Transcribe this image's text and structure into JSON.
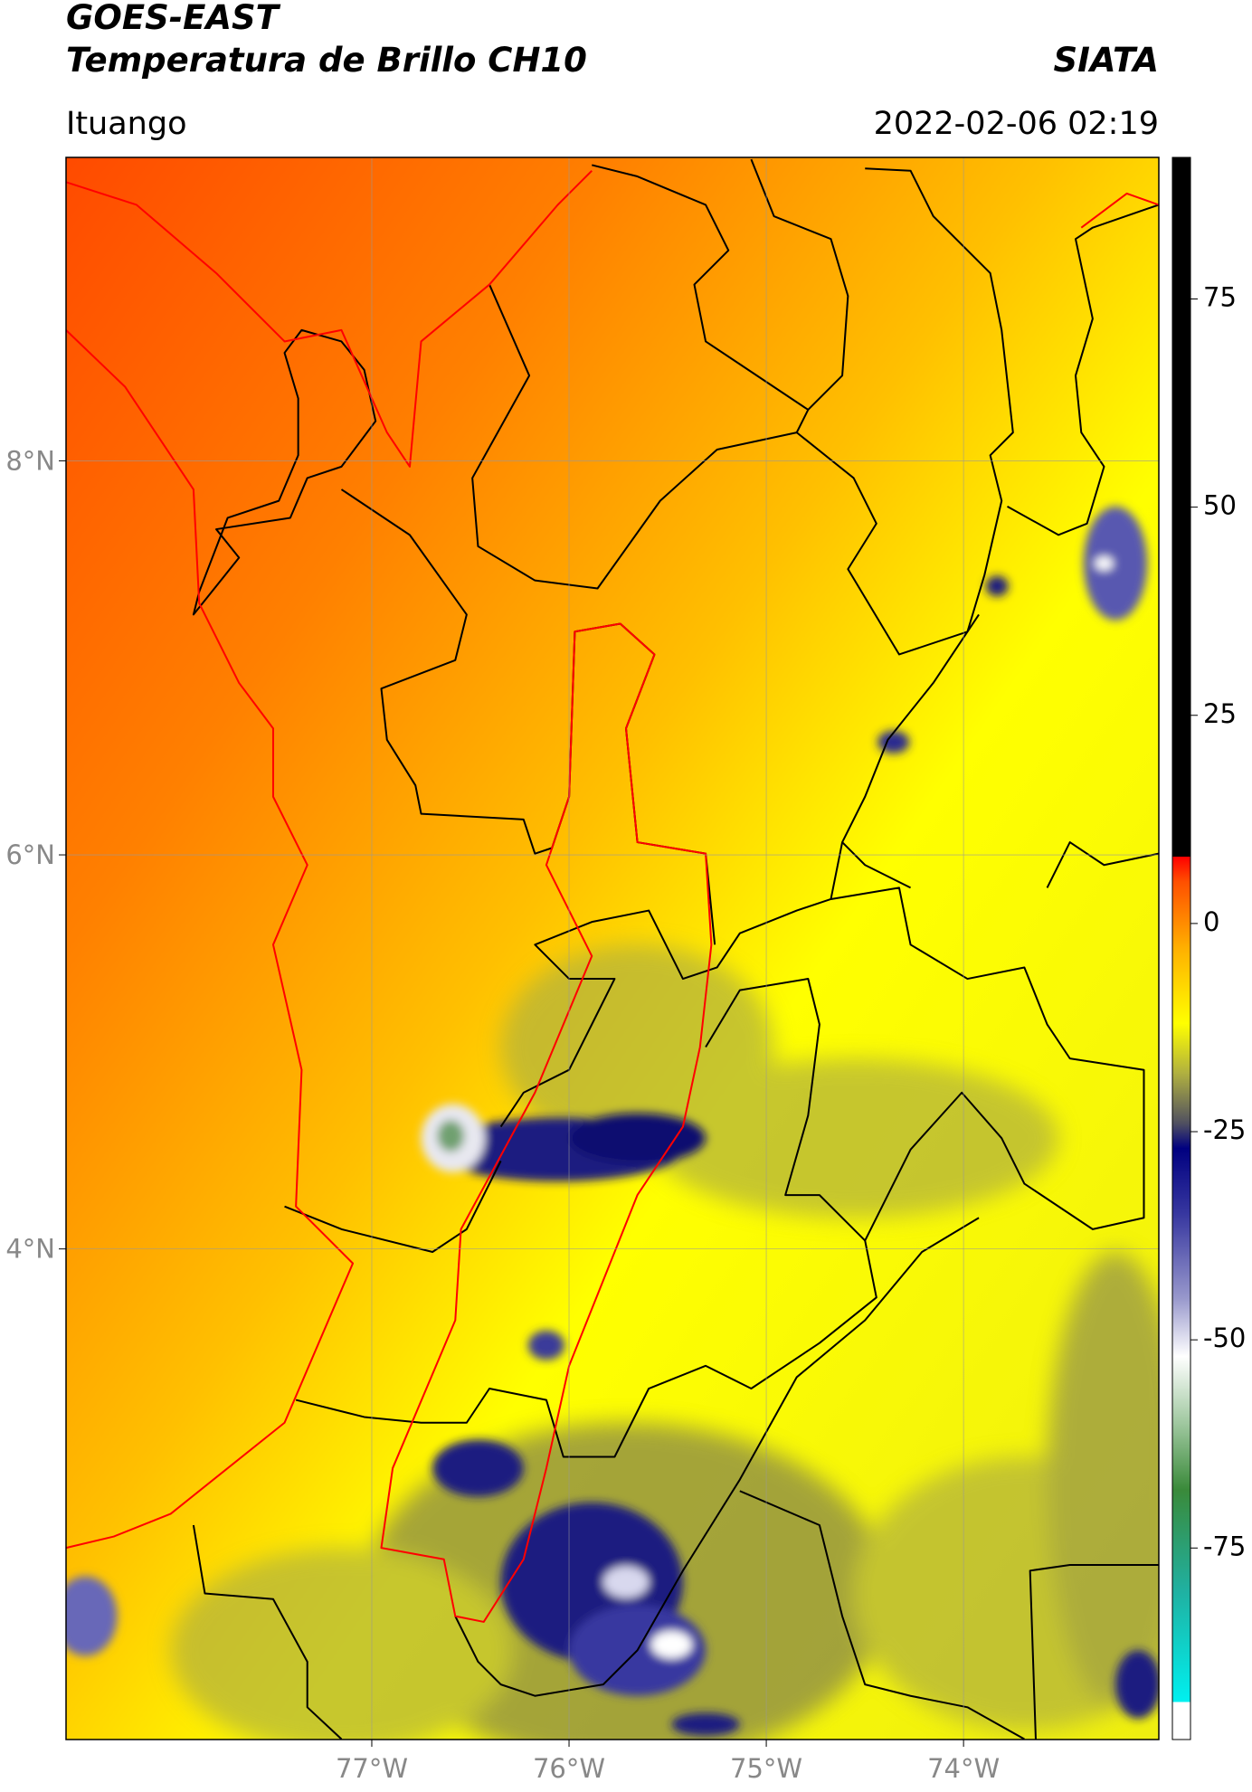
{
  "header": {
    "title": "GOES-EAST",
    "subtitle": "Temperatura de Brillo CH10",
    "source": "SIATA",
    "location": "Ituango",
    "datetime": "2022-02-06 02:19"
  },
  "map": {
    "xlim": [
      -78.55,
      -73.01
    ],
    "ylim": [
      1.51,
      9.54
    ],
    "xticks": [
      {
        "value": -77,
        "label": "77°W"
      },
      {
        "value": -76,
        "label": "76°W"
      },
      {
        "value": -75,
        "label": "75°W"
      },
      {
        "value": -74,
        "label": "74°W"
      }
    ],
    "yticks": [
      {
        "value": 8,
        "label": "8°N"
      },
      {
        "value": 6,
        "label": "6°N"
      },
      {
        "value": 4,
        "label": "4°N"
      }
    ],
    "grid": true,
    "grid_color": "#999999"
  },
  "colorbar": {
    "clim": [
      -98,
      92
    ],
    "ticks": [
      75,
      50,
      25,
      0,
      -25,
      -50,
      -75
    ],
    "stops": [
      {
        "value": -98,
        "color": "#ffffff"
      },
      {
        "value": -93.5,
        "color": "#ffffff"
      },
      {
        "value": -93.5,
        "color": "#00f0f0"
      },
      {
        "value": -80,
        "color": "#20b0a0"
      },
      {
        "value": -68,
        "color": "#3a8a3a"
      },
      {
        "value": -60,
        "color": "#a0c8a0"
      },
      {
        "value": -52,
        "color": "#ffffff"
      },
      {
        "value": -45,
        "color": "#9898cc"
      },
      {
        "value": -35,
        "color": "#3838a0"
      },
      {
        "value": -27,
        "color": "#000080"
      },
      {
        "value": -24,
        "color": "#505060"
      },
      {
        "value": -18,
        "color": "#b0b040"
      },
      {
        "value": -12,
        "color": "#ffff00"
      },
      {
        "value": -3,
        "color": "#ffb000"
      },
      {
        "value": 5,
        "color": "#ff5000"
      },
      {
        "value": 8,
        "color": "#ff0000"
      },
      {
        "value": 8,
        "color": "#000000"
      },
      {
        "value": 92,
        "color": "#000000"
      }
    ]
  }
}
